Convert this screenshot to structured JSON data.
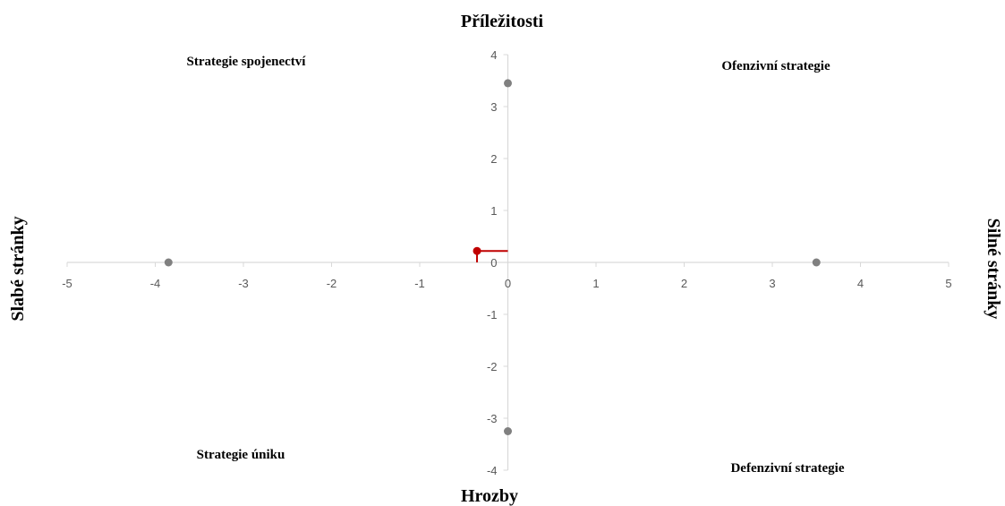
{
  "chart_data": {
    "type": "scatter",
    "title": "",
    "axis_titles": {
      "top": "Příležitosti",
      "bottom": "Hrozby",
      "left": "Slabé stránky",
      "right": "Silné stránky"
    },
    "quadrant_labels": {
      "top_left": "Strategie spojenectví",
      "top_right": "Ofenzivní strategie",
      "bottom_left": "Strategie úniku",
      "bottom_right": "Defenzivní strategie"
    },
    "xlim": [
      -5,
      5
    ],
    "ylim": [
      -4,
      4
    ],
    "x_ticks": [
      "-5",
      "-4",
      "-3",
      "-2",
      "-1",
      "0",
      "1",
      "2",
      "3",
      "4",
      "5"
    ],
    "y_ticks": [
      "4",
      "3",
      "2",
      "1",
      "0",
      "-1",
      "-2",
      "-3",
      "-4"
    ],
    "series": [
      {
        "color": "#808080",
        "points": [
          {
            "x": 0,
            "y": 3.45
          },
          {
            "x": -3.85,
            "y": 0
          },
          {
            "x": 3.5,
            "y": 0
          },
          {
            "x": 0,
            "y": -3.25
          }
        ]
      },
      {
        "color": "#c00000",
        "points": [
          {
            "x": -0.35,
            "y": 0.22
          }
        ],
        "connector_to_axes": true
      }
    ],
    "grid": false,
    "axis_color": "#d9d9d9"
  }
}
